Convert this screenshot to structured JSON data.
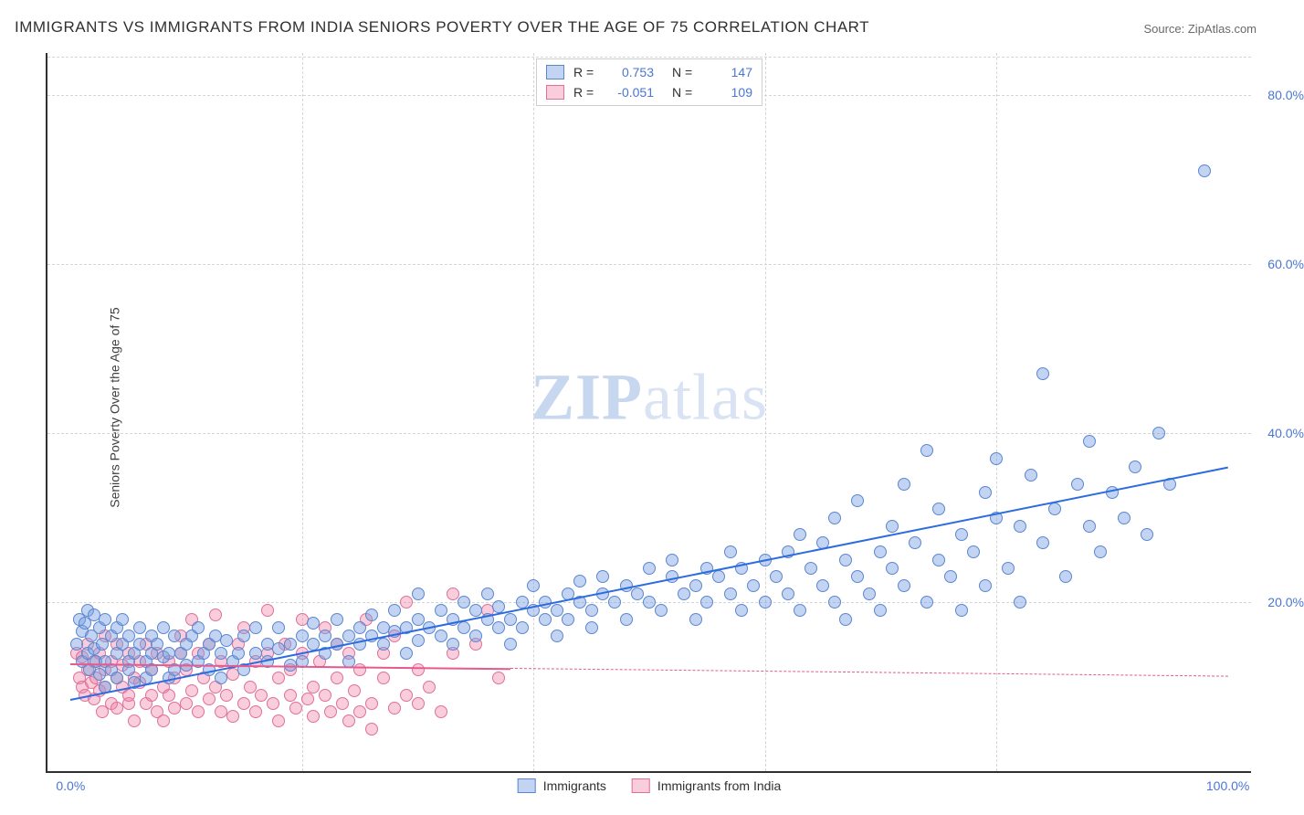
{
  "title": "IMMIGRANTS VS IMMIGRANTS FROM INDIA SENIORS POVERTY OVER THE AGE OF 75 CORRELATION CHART",
  "source": "Source: ZipAtlas.com",
  "watermark": {
    "part1": "ZIP",
    "part2": "atlas"
  },
  "chart": {
    "type": "scatter",
    "y_axis_title": "Seniors Poverty Over the Age of 75",
    "background_color": "#ffffff",
    "border_color": "#303030",
    "grid_color": "#d5d5d5",
    "tick_label_color": "#4a76d4",
    "xlim": [
      -2,
      102
    ],
    "ylim": [
      0,
      85
    ],
    "x_ticks": [
      0,
      20,
      40,
      60,
      80,
      100
    ],
    "x_tick_labels": [
      "0.0%",
      "",
      "",
      "",
      "",
      "100.0%"
    ],
    "y_ticks": [
      20,
      40,
      60,
      80
    ],
    "y_tick_labels": [
      "20.0%",
      "40.0%",
      "60.0%",
      "80.0%"
    ],
    "marker_radius": 7,
    "marker_border_width": 1.2,
    "series": [
      {
        "name": "Immigrants",
        "fill": "rgba(120,160,225,0.45)",
        "stroke": "#5b86d1",
        "trend": {
          "color": "#2d6be0",
          "width": 2.5,
          "x1": 0,
          "y1": 8.5,
          "x2": 100,
          "y2": 36,
          "solid_until_x": 100
        },
        "R": "0.753",
        "N": "147",
        "points": [
          [
            0.5,
            15
          ],
          [
            0.8,
            18
          ],
          [
            1,
            16.5
          ],
          [
            1,
            13
          ],
          [
            1.2,
            17.5
          ],
          [
            1.5,
            14
          ],
          [
            1.5,
            19
          ],
          [
            1.6,
            12
          ],
          [
            1.8,
            16
          ],
          [
            2,
            14.5
          ],
          [
            2,
            18.5
          ],
          [
            2.2,
            13
          ],
          [
            2.5,
            17
          ],
          [
            2.5,
            11.5
          ],
          [
            2.7,
            15
          ],
          [
            3,
            18
          ],
          [
            3,
            13
          ],
          [
            3,
            10
          ],
          [
            3.5,
            16
          ],
          [
            3.5,
            12
          ],
          [
            4,
            17
          ],
          [
            4,
            14
          ],
          [
            4,
            11
          ],
          [
            4.5,
            15
          ],
          [
            4.5,
            18
          ],
          [
            5,
            13
          ],
          [
            5,
            12
          ],
          [
            5,
            16
          ],
          [
            5.5,
            14
          ],
          [
            5.5,
            10.5
          ],
          [
            6,
            15
          ],
          [
            6,
            17
          ],
          [
            6.5,
            13
          ],
          [
            6.5,
            11
          ],
          [
            7,
            14
          ],
          [
            7,
            16
          ],
          [
            7,
            12
          ],
          [
            7.5,
            15
          ],
          [
            8,
            13.5
          ],
          [
            8,
            17
          ],
          [
            8.5,
            14
          ],
          [
            8.5,
            11
          ],
          [
            9,
            16
          ],
          [
            9,
            12
          ],
          [
            9.5,
            14
          ],
          [
            10,
            15
          ],
          [
            10,
            12.5
          ],
          [
            10.5,
            16
          ],
          [
            11,
            13
          ],
          [
            11,
            17
          ],
          [
            11.5,
            14
          ],
          [
            12,
            15
          ],
          [
            12,
            12
          ],
          [
            12.5,
            16
          ],
          [
            13,
            14
          ],
          [
            13,
            11
          ],
          [
            13.5,
            15.5
          ],
          [
            14,
            13
          ],
          [
            14.5,
            14
          ],
          [
            15,
            16
          ],
          [
            15,
            12
          ],
          [
            16,
            14
          ],
          [
            16,
            17
          ],
          [
            17,
            15
          ],
          [
            17,
            13
          ],
          [
            18,
            14.5
          ],
          [
            18,
            17
          ],
          [
            19,
            15
          ],
          [
            19,
            12.5
          ],
          [
            20,
            16
          ],
          [
            20,
            13
          ],
          [
            21,
            15
          ],
          [
            21,
            17.5
          ],
          [
            22,
            14
          ],
          [
            22,
            16
          ],
          [
            23,
            15
          ],
          [
            23,
            18
          ],
          [
            24,
            16
          ],
          [
            24,
            13
          ],
          [
            25,
            17
          ],
          [
            25,
            15
          ],
          [
            26,
            16
          ],
          [
            26,
            18.5
          ],
          [
            27,
            15
          ],
          [
            27,
            17
          ],
          [
            28,
            16.5
          ],
          [
            28,
            19
          ],
          [
            29,
            17
          ],
          [
            29,
            14
          ],
          [
            30,
            18
          ],
          [
            30,
            15.5
          ],
          [
            30,
            21
          ],
          [
            31,
            17
          ],
          [
            32,
            16
          ],
          [
            32,
            19
          ],
          [
            33,
            18
          ],
          [
            33,
            15
          ],
          [
            34,
            17
          ],
          [
            34,
            20
          ],
          [
            35,
            19
          ],
          [
            35,
            16
          ],
          [
            36,
            18
          ],
          [
            36,
            21
          ],
          [
            37,
            17
          ],
          [
            37,
            19.5
          ],
          [
            38,
            18
          ],
          [
            38,
            15
          ],
          [
            39,
            20
          ],
          [
            39,
            17
          ],
          [
            40,
            19
          ],
          [
            40,
            22
          ],
          [
            41,
            18
          ],
          [
            41,
            20
          ],
          [
            42,
            19
          ],
          [
            42,
            16
          ],
          [
            43,
            21
          ],
          [
            43,
            18
          ],
          [
            44,
            20
          ],
          [
            44,
            22.5
          ],
          [
            45,
            19
          ],
          [
            45,
            17
          ],
          [
            46,
            21
          ],
          [
            46,
            23
          ],
          [
            47,
            20
          ],
          [
            48,
            22
          ],
          [
            48,
            18
          ],
          [
            49,
            21
          ],
          [
            50,
            24
          ],
          [
            50,
            20
          ],
          [
            51,
            19
          ],
          [
            52,
            23
          ],
          [
            52,
            25
          ],
          [
            53,
            21
          ],
          [
            54,
            22
          ],
          [
            54,
            18
          ],
          [
            55,
            24
          ],
          [
            55,
            20
          ],
          [
            56,
            23
          ],
          [
            57,
            21
          ],
          [
            57,
            26
          ],
          [
            58,
            24
          ],
          [
            58,
            19
          ],
          [
            59,
            22
          ],
          [
            60,
            25
          ],
          [
            60,
            20
          ],
          [
            61,
            23
          ],
          [
            62,
            26
          ],
          [
            62,
            21
          ],
          [
            63,
            28
          ],
          [
            63,
            19
          ],
          [
            64,
            24
          ],
          [
            65,
            22
          ],
          [
            65,
            27
          ],
          [
            66,
            20
          ],
          [
            66,
            30
          ],
          [
            67,
            25
          ],
          [
            67,
            18
          ],
          [
            68,
            23
          ],
          [
            68,
            32
          ],
          [
            69,
            21
          ],
          [
            70,
            26
          ],
          [
            70,
            19
          ],
          [
            71,
            24
          ],
          [
            71,
            29
          ],
          [
            72,
            22
          ],
          [
            72,
            34
          ],
          [
            73,
            27
          ],
          [
            74,
            20
          ],
          [
            74,
            38
          ],
          [
            75,
            25
          ],
          [
            75,
            31
          ],
          [
            76,
            23
          ],
          [
            77,
            28
          ],
          [
            77,
            19
          ],
          [
            78,
            26
          ],
          [
            79,
            33
          ],
          [
            79,
            22
          ],
          [
            80,
            30
          ],
          [
            80,
            37
          ],
          [
            81,
            24
          ],
          [
            82,
            29
          ],
          [
            82,
            20
          ],
          [
            83,
            35
          ],
          [
            84,
            27
          ],
          [
            84,
            47
          ],
          [
            85,
            31
          ],
          [
            86,
            23
          ],
          [
            87,
            34
          ],
          [
            88,
            29
          ],
          [
            88,
            39
          ],
          [
            89,
            26
          ],
          [
            90,
            33
          ],
          [
            91,
            30
          ],
          [
            92,
            36
          ],
          [
            93,
            28
          ],
          [
            94,
            40
          ],
          [
            95,
            34
          ],
          [
            98,
            71
          ]
        ]
      },
      {
        "name": "Immigrants from India",
        "fill": "rgba(240,130,165,0.40)",
        "stroke": "#e06f9a",
        "trend": {
          "color": "#e65a8e",
          "width": 2.2,
          "x1": 0,
          "y1": 12.8,
          "x2": 100,
          "y2": 11.3,
          "solid_until_x": 38
        },
        "R": "-0.051",
        "N": "109",
        "points": [
          [
            0.5,
            14
          ],
          [
            0.8,
            11
          ],
          [
            1,
            10
          ],
          [
            1,
            13.5
          ],
          [
            1.2,
            9
          ],
          [
            1.5,
            12
          ],
          [
            1.5,
            15
          ],
          [
            1.8,
            10.5
          ],
          [
            2,
            8.5
          ],
          [
            2,
            13
          ],
          [
            2.2,
            11
          ],
          [
            2.5,
            9.5
          ],
          [
            2.5,
            14
          ],
          [
            2.7,
            7
          ],
          [
            3,
            12
          ],
          [
            3,
            10
          ],
          [
            3,
            16
          ],
          [
            3.5,
            8
          ],
          [
            3.5,
            13
          ],
          [
            4,
            11
          ],
          [
            4,
            7.5
          ],
          [
            4,
            15
          ],
          [
            4.5,
            10
          ],
          [
            4.5,
            12.5
          ],
          [
            5,
            8
          ],
          [
            5,
            14
          ],
          [
            5,
            9
          ],
          [
            5.5,
            11
          ],
          [
            5.5,
            6
          ],
          [
            6,
            13
          ],
          [
            6,
            10.5
          ],
          [
            6.5,
            8
          ],
          [
            6.5,
            15
          ],
          [
            7,
            9
          ],
          [
            7,
            12
          ],
          [
            7.5,
            7
          ],
          [
            7.5,
            14
          ],
          [
            8,
            10
          ],
          [
            8,
            6
          ],
          [
            8.5,
            13
          ],
          [
            8.5,
            9
          ],
          [
            9,
            11
          ],
          [
            9,
            7.5
          ],
          [
            9.5,
            14
          ],
          [
            9.5,
            16
          ],
          [
            10,
            8
          ],
          [
            10,
            12
          ],
          [
            10.5,
            9.5
          ],
          [
            10.5,
            18
          ],
          [
            11,
            7
          ],
          [
            11,
            14
          ],
          [
            11.5,
            11
          ],
          [
            12,
            8.5
          ],
          [
            12,
            15
          ],
          [
            12.5,
            10
          ],
          [
            12.5,
            18.5
          ],
          [
            13,
            7
          ],
          [
            13,
            13
          ],
          [
            13.5,
            9
          ],
          [
            14,
            11.5
          ],
          [
            14,
            6.5
          ],
          [
            14.5,
            15
          ],
          [
            15,
            8
          ],
          [
            15,
            17
          ],
          [
            15.5,
            10
          ],
          [
            16,
            7
          ],
          [
            16,
            13
          ],
          [
            16.5,
            9
          ],
          [
            17,
            14
          ],
          [
            17,
            19
          ],
          [
            17.5,
            8
          ],
          [
            18,
            11
          ],
          [
            18,
            6
          ],
          [
            18.5,
            15
          ],
          [
            19,
            9
          ],
          [
            19,
            12
          ],
          [
            19.5,
            7.5
          ],
          [
            20,
            14
          ],
          [
            20,
            18
          ],
          [
            20.5,
            8.5
          ],
          [
            21,
            10
          ],
          [
            21,
            6.5
          ],
          [
            21.5,
            13
          ],
          [
            22,
            9
          ],
          [
            22,
            17
          ],
          [
            22.5,
            7
          ],
          [
            23,
            11
          ],
          [
            23,
            15
          ],
          [
            23.5,
            8
          ],
          [
            24,
            6
          ],
          [
            24,
            14
          ],
          [
            24.5,
            9.5
          ],
          [
            25,
            12
          ],
          [
            25,
            7
          ],
          [
            25.5,
            18
          ],
          [
            26,
            8
          ],
          [
            26,
            5
          ],
          [
            27,
            11
          ],
          [
            27,
            14
          ],
          [
            28,
            7.5
          ],
          [
            28,
            16
          ],
          [
            29,
            9
          ],
          [
            29,
            20
          ],
          [
            30,
            8
          ],
          [
            30,
            12
          ],
          [
            31,
            10
          ],
          [
            32,
            7
          ],
          [
            33,
            14
          ],
          [
            33,
            21
          ],
          [
            35,
            15
          ],
          [
            36,
            19
          ],
          [
            37,
            11
          ]
        ]
      }
    ],
    "legend_top": {
      "R_label": "R =",
      "N_label": "N ="
    },
    "legend_bottom": [
      {
        "label": "Immigrants",
        "fill": "rgba(120,160,225,0.45)",
        "stroke": "#5b86d1"
      },
      {
        "label": "Immigrants from India",
        "fill": "rgba(240,130,165,0.40)",
        "stroke": "#e06f9a"
      }
    ]
  }
}
